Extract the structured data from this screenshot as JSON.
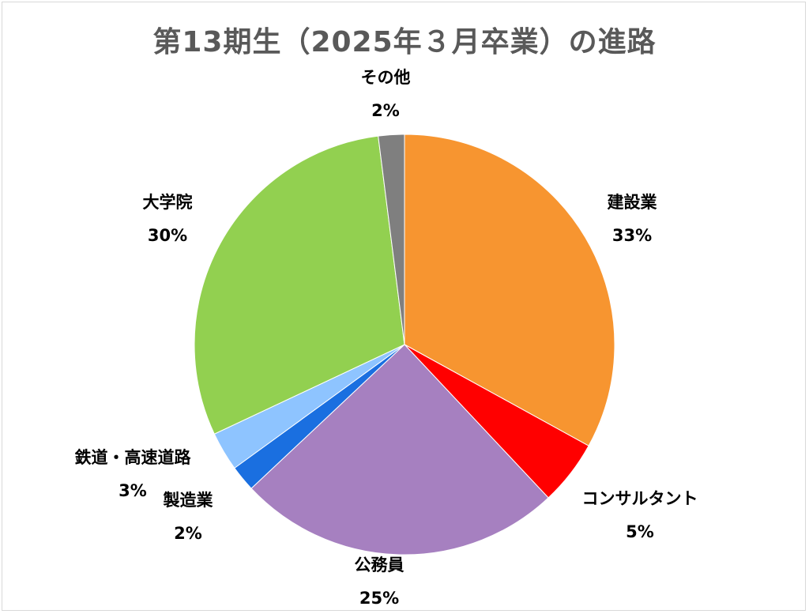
{
  "chart_data": {
    "type": "pie",
    "title": "第13期生（2025年３月卒業）の進路",
    "start_angle_deg": 0,
    "direction": "clockwise",
    "slices": [
      {
        "name": "建設業",
        "value": 33,
        "label": "33%",
        "color": "#F79530"
      },
      {
        "name": "コンサルタント",
        "value": 5,
        "label": "5%",
        "color": "#FF0000"
      },
      {
        "name": "公務員",
        "value": 25,
        "label": "25%",
        "color": "#A680C0"
      },
      {
        "name": "製造業",
        "value": 2,
        "label": "2%",
        "color": "#1A6FE0"
      },
      {
        "name": "鉄道・高速道路",
        "value": 3,
        "label": "3%",
        "color": "#8EC4FF"
      },
      {
        "name": "大学院",
        "value": 30,
        "label": "30%",
        "color": "#92D050"
      },
      {
        "name": "その他",
        "value": 2,
        "label": "2%",
        "color": "#7F7F7F"
      }
    ]
  }
}
